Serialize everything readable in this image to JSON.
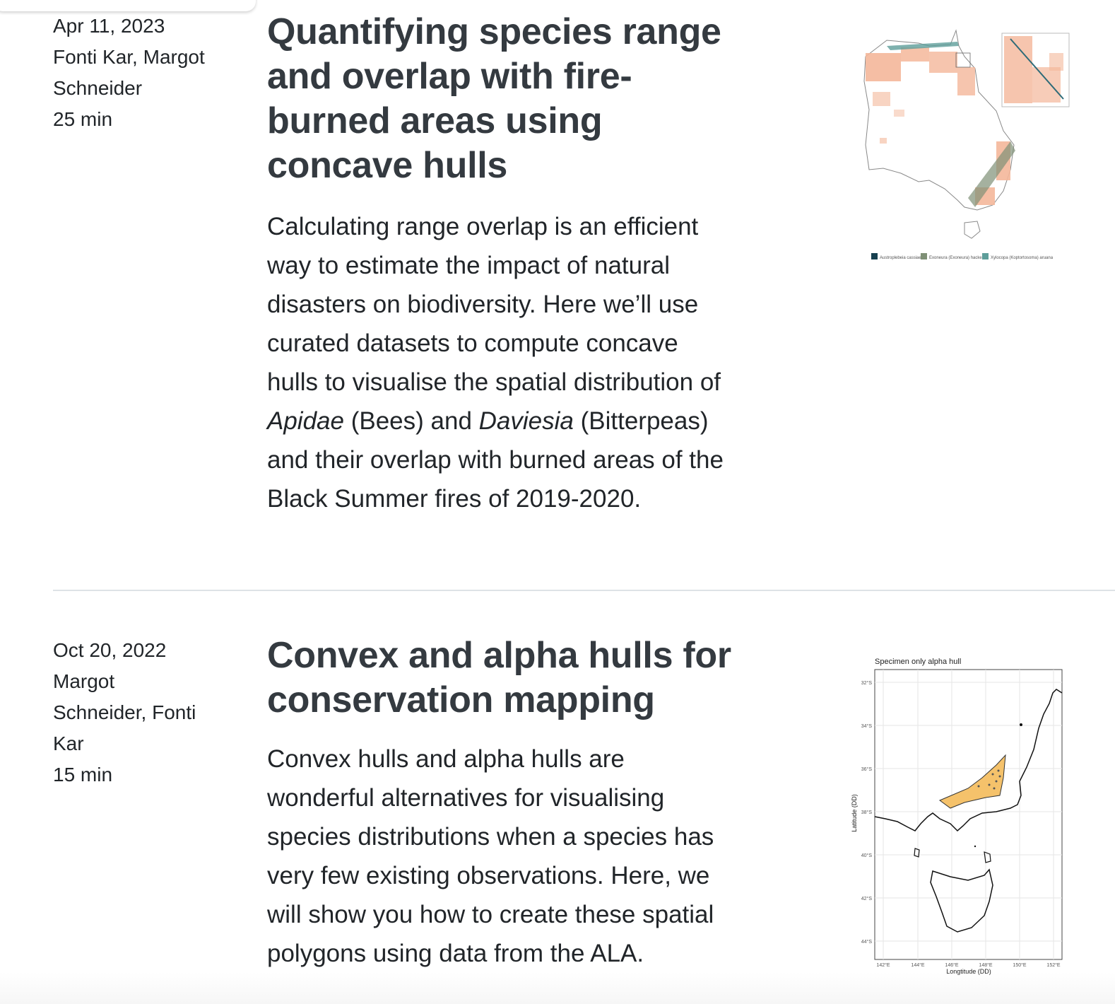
{
  "posts": [
    {
      "date": "Apr 11, 2023",
      "authors": [
        "Fonti Kar, Margot",
        "Schneider"
      ],
      "reading_time": "25 min",
      "title": "Quantifying species range and overlap with fire-burned areas using concave hulls",
      "description": {
        "part1": "Calculating range overlap is an efficient way to estimate the impact of natural disasters on biodiversity. Here we’ll use curated datasets to compute concave hulls to visualise the spatial distribution of ",
        "italic1": "Apidae",
        "part2": " (Bees) and ",
        "italic2": "Daviesia",
        "part3": " (Bitterpeas) and their overlap with burned areas of the Black Summer fires of 2019-2020."
      },
      "thumbnail": {
        "legend": [
          "Austroplebeia cassiae",
          "Exoneura (Exoneura) hackeri",
          "Xylocopa (Koptortosoma) aruana"
        ],
        "legend_colors": [
          "#16404f",
          "#7f9076",
          "#5e9e9a"
        ],
        "fill_color": "#f4b79a"
      }
    },
    {
      "date": "Oct 20, 2022",
      "authors": [
        "Margot",
        "Schneider, Fonti",
        "Kar"
      ],
      "reading_time": "15 min",
      "title": "Convex and alpha hulls for conservation mapping",
      "description": {
        "text": "Convex hulls and alpha hulls are wonderful alternatives for visualising species distributions when a species has very few existing observations. Here, we will show you how to create these spatial polygons using data from the ALA."
      },
      "thumbnail": {
        "title": "Specimen only alpha hull",
        "y_ticks": [
          "32°S",
          "34°S",
          "36°S",
          "38°S",
          "40°S",
          "42°S",
          "44°S"
        ],
        "x_ticks": [
          "142°E",
          "144°E",
          "146°E",
          "148°E",
          "150°E",
          "152°E"
        ],
        "xlabel": "Longtitude (DD)",
        "ylabel": "Latitude (DD)",
        "hull_color": "#f5c26b"
      }
    }
  ]
}
